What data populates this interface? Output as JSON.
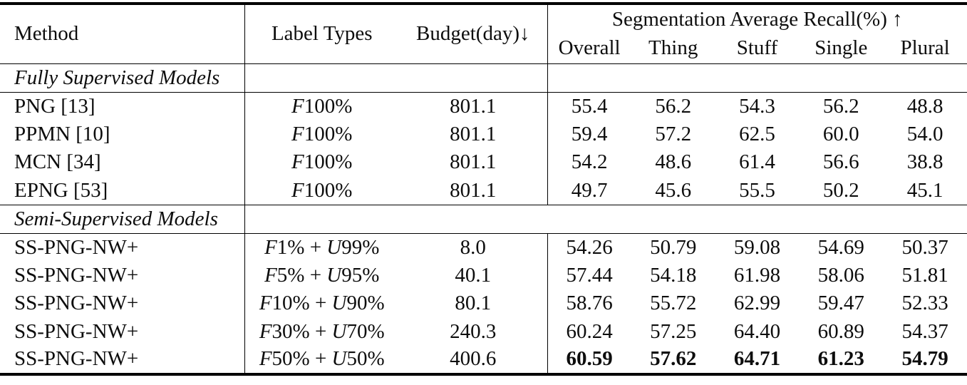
{
  "table": {
    "headers": {
      "method": "Method",
      "label_types": "Label Types",
      "budget": "Budget(day)↓",
      "group": "Segmentation Average Recall(%) ↑",
      "subcols": [
        "Overall",
        "Thing",
        "Stuff",
        "Single",
        "Plural"
      ]
    },
    "sections": [
      {
        "title": "Fully Supervised Models",
        "rows": [
          {
            "method": "PNG [13]",
            "label_type": "F100%",
            "budget": "801.1",
            "values": [
              "55.4",
              "56.2",
              "54.3",
              "56.2",
              "48.8"
            ],
            "bold": false
          },
          {
            "method": "PPMN [10]",
            "label_type": "F100%",
            "budget": "801.1",
            "values": [
              "59.4",
              "57.2",
              "62.5",
              "60.0",
              "54.0"
            ],
            "bold": false
          },
          {
            "method": "MCN [34]",
            "label_type": "F100%",
            "budget": "801.1",
            "values": [
              "54.2",
              "48.6",
              "61.4",
              "56.6",
              "38.8"
            ],
            "bold": false
          },
          {
            "method": "EPNG [53]",
            "label_type": "F100%",
            "budget": "801.1",
            "values": [
              "49.7",
              "45.6",
              "55.5",
              "50.2",
              "45.1"
            ],
            "bold": false
          }
        ]
      },
      {
        "title": "Semi-Supervised Models",
        "rows": [
          {
            "method": "SS-PNG-NW+",
            "label_type": "F1% + U99%",
            "budget": "8.0",
            "values": [
              "54.26",
              "50.79",
              "59.08",
              "54.69",
              "50.37"
            ],
            "bold": false
          },
          {
            "method": "SS-PNG-NW+",
            "label_type": "F5% + U95%",
            "budget": "40.1",
            "values": [
              "57.44",
              "54.18",
              "61.98",
              "58.06",
              "51.81"
            ],
            "bold": false
          },
          {
            "method": "SS-PNG-NW+",
            "label_type": "F10% + U90%",
            "budget": "80.1",
            "values": [
              "58.76",
              "55.72",
              "62.99",
              "59.47",
              "52.33"
            ],
            "bold": false
          },
          {
            "method": "SS-PNG-NW+",
            "label_type": "F30% + U70%",
            "budget": "240.3",
            "values": [
              "60.24",
              "57.25",
              "64.40",
              "60.89",
              "54.37"
            ],
            "bold": false
          },
          {
            "method": "SS-PNG-NW+",
            "label_type": "F50% + U50%",
            "budget": "400.6",
            "values": [
              "60.59",
              "57.62",
              "64.71",
              "61.23",
              "54.79"
            ],
            "bold": true
          }
        ]
      }
    ],
    "colors": {
      "text": "#0d0d0d",
      "rule": "#000000",
      "background": "#ffffff"
    }
  }
}
